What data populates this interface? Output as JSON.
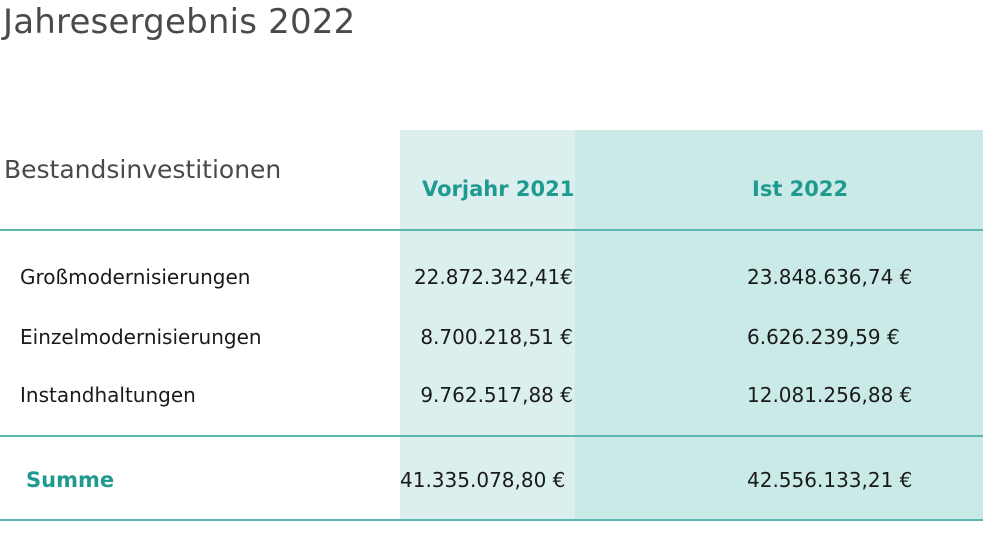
{
  "title": "Jahresergebnis 2022",
  "table": {
    "section_label": "Bestandsinvestitionen",
    "columns": [
      "Vorjahr 2021",
      "Ist 2022"
    ],
    "rows": [
      {
        "label": "Großmodernisierungen",
        "v2021": "22.872.342,41€",
        "v2022": "23.848.636,74 €"
      },
      {
        "label": "Einzelmodernisierungen",
        "v2021": "8.700.218,51 €",
        "v2022": "6.626.239,59 €"
      },
      {
        "label": "Instandhaltungen",
        "v2021": "9.762.517,88 €",
        "v2022": "12.081.256,88 €"
      }
    ],
    "total": {
      "label": "Summe",
      "v2021": "41.335.078,80 €",
      "v2022": "42.556.133,21 €"
    }
  },
  "colors": {
    "accent": "#1f9a91",
    "rule": "#5cb7ae",
    "col_2021_bg": "#dbf0ee",
    "col_2022_bg": "#c9eae7"
  }
}
